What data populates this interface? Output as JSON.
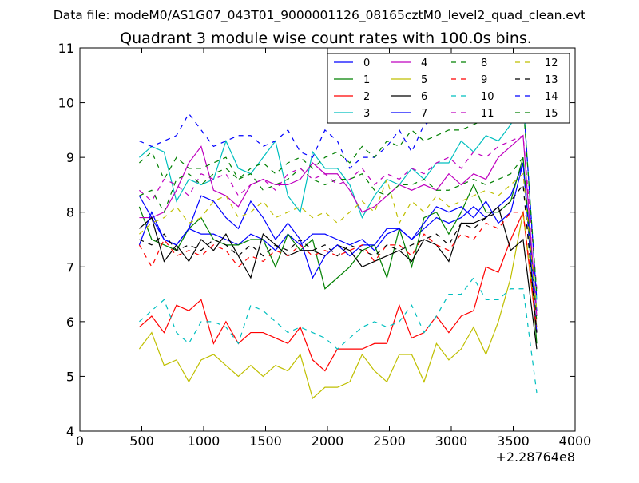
{
  "chart_data": {
    "type": "line",
    "suptitle": "Data file: modeM0/AS1G07_043T01_9000001126_08165cztM0_level2_quad_clean.evt",
    "title": "Quadrant 3 module wise count rates with 100.0s bins.",
    "xlabel": "",
    "ylabel": "",
    "x_offset_label": "+2.28764e8",
    "xlim": [
      0,
      4000
    ],
    "ylim": [
      4,
      11
    ],
    "xticks": [
      "0",
      "500",
      "1000",
      "1500",
      "2000",
      "2500",
      "3000",
      "3500",
      "4000"
    ],
    "yticks": [
      "4",
      "5",
      "6",
      "7",
      "8",
      "9",
      "10",
      "11"
    ],
    "grid": false,
    "legend_position": "top-right",
    "x": [
      480,
      580,
      680,
      780,
      880,
      980,
      1080,
      1180,
      1280,
      1380,
      1480,
      1580,
      1680,
      1780,
      1880,
      1980,
      2080,
      2180,
      2280,
      2380,
      2480,
      2580,
      2680,
      2780,
      2880,
      2980,
      3080,
      3180,
      3280,
      3380,
      3480,
      3580,
      3690
    ],
    "series": [
      {
        "name": "0",
        "color": "#0000ff",
        "dash": "solid",
        "values": [
          8.3,
          7.9,
          7.5,
          7.4,
          7.7,
          7.6,
          7.6,
          7.5,
          7.4,
          7.6,
          7.5,
          7.3,
          7.6,
          7.4,
          7.6,
          7.6,
          7.5,
          7.4,
          7.5,
          7.3,
          7.6,
          7.7,
          7.5,
          7.7,
          7.9,
          7.8,
          7.9,
          8.1,
          7.9,
          8.1,
          8.3,
          8.9,
          6.2
        ]
      },
      {
        "name": "1",
        "color": "#008000",
        "dash": "solid",
        "values": [
          8.1,
          7.5,
          7.4,
          7.3,
          7.7,
          7.9,
          7.5,
          7.4,
          7.4,
          7.5,
          7.5,
          7.0,
          7.6,
          7.3,
          7.5,
          6.6,
          6.8,
          7.0,
          7.3,
          7.4,
          6.8,
          7.7,
          7.0,
          7.9,
          8.0,
          7.6,
          8.0,
          8.5,
          8.0,
          8.0,
          8.2,
          9.0,
          5.6
        ]
      },
      {
        "name": "2",
        "color": "#ff0000",
        "dash": "solid",
        "values": [
          5.9,
          6.1,
          5.8,
          6.3,
          6.2,
          6.4,
          5.6,
          6.0,
          5.6,
          5.8,
          5.8,
          5.7,
          5.6,
          5.9,
          5.3,
          5.1,
          5.5,
          5.5,
          5.5,
          5.6,
          5.6,
          6.3,
          5.7,
          5.8,
          6.1,
          5.8,
          6.1,
          6.2,
          7.0,
          6.9,
          7.5,
          8.0,
          5.8
        ]
      },
      {
        "name": "3",
        "color": "#00bfbf",
        "dash": "solid",
        "values": [
          9.0,
          9.2,
          9.1,
          8.2,
          8.6,
          8.5,
          8.6,
          9.3,
          8.8,
          8.7,
          9.0,
          9.3,
          8.3,
          8.0,
          9.1,
          8.8,
          8.8,
          8.5,
          7.9,
          8.3,
          8.6,
          8.5,
          8.8,
          8.6,
          8.9,
          8.9,
          9.3,
          9.1,
          9.4,
          9.3,
          9.6,
          10.1,
          6.4
        ]
      },
      {
        "name": "4",
        "color": "#bf00bf",
        "dash": "solid",
        "values": [
          7.9,
          7.9,
          8.0,
          8.4,
          8.9,
          9.2,
          8.4,
          8.3,
          8.1,
          8.5,
          8.6,
          8.5,
          8.5,
          8.6,
          8.9,
          8.7,
          8.7,
          8.4,
          8.0,
          8.1,
          8.3,
          8.5,
          8.4,
          8.5,
          8.4,
          8.7,
          8.5,
          8.7,
          8.6,
          9.0,
          9.2,
          9.4,
          6.1
        ]
      },
      {
        "name": "5",
        "color": "#bfbf00",
        "dash": "solid",
        "values": [
          5.5,
          5.8,
          5.2,
          5.3,
          4.9,
          5.3,
          5.4,
          5.2,
          5.0,
          5.2,
          5.0,
          5.2,
          5.1,
          5.4,
          4.6,
          4.8,
          4.8,
          4.9,
          5.4,
          5.1,
          4.9,
          5.4,
          5.4,
          4.9,
          5.6,
          5.3,
          5.5,
          5.9,
          5.4,
          6.0,
          6.8,
          8.0,
          5.9
        ]
      },
      {
        "name": "6",
        "color": "#000000",
        "dash": "solid",
        "values": [
          7.7,
          7.9,
          7.1,
          7.4,
          7.1,
          7.5,
          7.3,
          7.6,
          7.2,
          6.8,
          7.6,
          7.4,
          7.2,
          7.3,
          7.3,
          7.2,
          7.4,
          7.3,
          7.0,
          7.1,
          7.2,
          7.3,
          7.1,
          7.5,
          7.4,
          7.1,
          7.8,
          7.8,
          7.9,
          8.1,
          7.3,
          7.5,
          5.5
        ]
      },
      {
        "name": "7",
        "color": "#0000ff",
        "dash": "solid",
        "values": [
          7.4,
          8.0,
          7.5,
          7.4,
          7.7,
          8.3,
          8.2,
          7.9,
          7.7,
          8.2,
          7.9,
          7.5,
          7.8,
          7.5,
          6.8,
          7.2,
          7.4,
          7.2,
          7.4,
          7.4,
          7.7,
          7.7,
          7.5,
          7.8,
          8.1,
          8.0,
          8.1,
          7.9,
          8.2,
          7.8,
          8.0,
          8.9,
          5.8
        ]
      },
      {
        "name": "8",
        "color": "#008000",
        "dash": "dashed",
        "values": [
          8.9,
          9.1,
          8.6,
          9.0,
          8.8,
          8.8,
          8.9,
          9.0,
          8.6,
          8.7,
          8.4,
          8.5,
          8.6,
          8.8,
          8.6,
          8.5,
          8.6,
          8.6,
          8.7,
          8.4,
          8.3,
          8.5,
          8.5,
          8.6,
          8.4,
          8.4,
          8.5,
          8.6,
          8.5,
          8.6,
          8.7,
          9.0,
          6.0
        ]
      },
      {
        "name": "9",
        "color": "#ff0000",
        "dash": "dashed",
        "values": [
          7.4,
          7.0,
          7.5,
          7.2,
          7.3,
          7.2,
          7.4,
          7.3,
          7.0,
          7.2,
          7.1,
          7.3,
          7.2,
          7.4,
          7.2,
          7.3,
          7.2,
          7.3,
          7.4,
          7.1,
          7.4,
          7.4,
          7.2,
          7.6,
          7.4,
          7.3,
          7.6,
          7.5,
          7.8,
          7.7,
          8.0,
          8.0,
          5.9
        ]
      },
      {
        "name": "10",
        "color": "#00bfbf",
        "dash": "dashed",
        "values": [
          6.0,
          6.2,
          6.4,
          5.8,
          5.6,
          6.0,
          6.0,
          5.9,
          5.6,
          6.3,
          6.2,
          6.0,
          5.8,
          5.9,
          5.8,
          5.7,
          5.5,
          5.7,
          5.9,
          6.0,
          5.9,
          6.0,
          6.3,
          5.8,
          6.1,
          6.5,
          6.5,
          6.8,
          6.4,
          6.4,
          6.6,
          6.6,
          4.7
        ]
      },
      {
        "name": "11",
        "color": "#bf00bf",
        "dash": "dashed",
        "values": [
          8.4,
          8.2,
          8.6,
          8.5,
          8.3,
          8.7,
          8.6,
          8.7,
          8.3,
          8.5,
          8.6,
          8.4,
          8.7,
          8.8,
          8.6,
          8.7,
          8.5,
          8.6,
          8.8,
          8.5,
          8.7,
          8.6,
          8.8,
          8.7,
          8.9,
          9.0,
          8.8,
          9.1,
          9.0,
          9.2,
          9.3,
          9.4,
          6.6
        ]
      },
      {
        "name": "12",
        "color": "#bfbf00",
        "dash": "dashed",
        "values": [
          7.6,
          7.8,
          7.9,
          8.1,
          7.8,
          7.9,
          8.2,
          8.3,
          7.9,
          8.0,
          8.2,
          7.9,
          8.0,
          8.1,
          7.9,
          8.0,
          7.8,
          8.0,
          8.2,
          8.0,
          8.6,
          7.8,
          8.2,
          8.0,
          8.3,
          8.1,
          8.2,
          8.3,
          8.4,
          8.3,
          8.5,
          8.7,
          6.2
        ]
      },
      {
        "name": "13",
        "color": "#000000",
        "dash": "dashed",
        "values": [
          7.5,
          7.4,
          7.6,
          7.3,
          7.4,
          7.3,
          7.5,
          7.4,
          7.2,
          7.4,
          7.2,
          7.4,
          7.3,
          7.5,
          7.3,
          7.4,
          7.2,
          7.4,
          7.3,
          7.2,
          7.4,
          7.3,
          7.4,
          7.5,
          7.6,
          7.4,
          7.8,
          7.7,
          7.9,
          8.0,
          8.2,
          8.5,
          5.8
        ]
      },
      {
        "name": "14",
        "color": "#0000ff",
        "dash": "dashed",
        "values": [
          9.3,
          9.2,
          9.3,
          9.4,
          9.8,
          9.5,
          9.2,
          9.3,
          9.4,
          9.4,
          9.2,
          9.3,
          9.5,
          9.1,
          9.0,
          9.5,
          9.3,
          8.8,
          9.0,
          9.0,
          9.2,
          9.5,
          9.1,
          9.6,
          9.7,
          9.7,
          9.8,
          9.8,
          9.9,
          10.0,
          10.1,
          10.1,
          6.4
        ]
      },
      {
        "name": "15",
        "color": "#008000",
        "dash": "dashed",
        "values": [
          8.3,
          8.4,
          8.0,
          8.6,
          8.7,
          8.5,
          8.7,
          8.8,
          8.6,
          8.8,
          8.9,
          8.7,
          8.9,
          9.0,
          8.8,
          9.0,
          9.1,
          8.9,
          9.2,
          9.0,
          9.3,
          9.2,
          9.5,
          9.3,
          9.4,
          9.5,
          9.5,
          9.6,
          9.7,
          9.8,
          9.9,
          10.0,
          6.5
        ]
      }
    ]
  }
}
